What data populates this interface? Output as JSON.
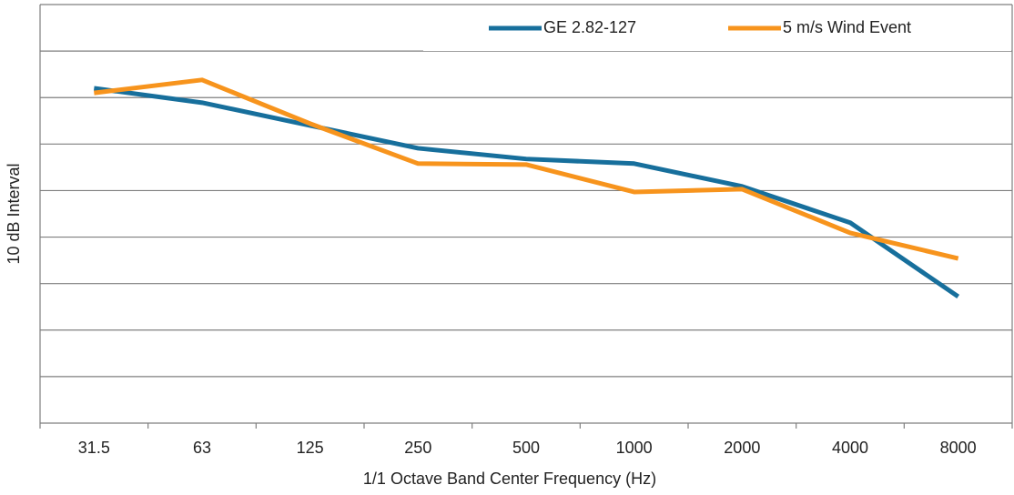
{
  "chart_data": {
    "type": "line",
    "x_label": "1/1 Octave Band Center Frequency (Hz)",
    "y_label": "10 dB Interval",
    "categories": [
      "31.5",
      "63",
      "125",
      "250",
      "500",
      "1000",
      "2000",
      "4000",
      "8000"
    ],
    "series": [
      {
        "name": "GE 2.82-127",
        "color": "#176f9c",
        "values": [
          72.0,
          68.9,
          64.0,
          59.1,
          56.8,
          55.8,
          50.9,
          43.1,
          27.2
        ]
      },
      {
        "name": "5 m/s Wind Event",
        "color": "#f7941d",
        "values": [
          71.0,
          73.8,
          64.4,
          55.8,
          55.6,
          49.7,
          50.3,
          40.9,
          35.4
        ]
      }
    ],
    "ylim": [
      0,
      90
    ],
    "yticks": [
      0,
      10,
      20,
      30,
      40,
      50,
      60,
      70,
      80,
      90
    ],
    "grid": true,
    "legend": "top-right"
  }
}
